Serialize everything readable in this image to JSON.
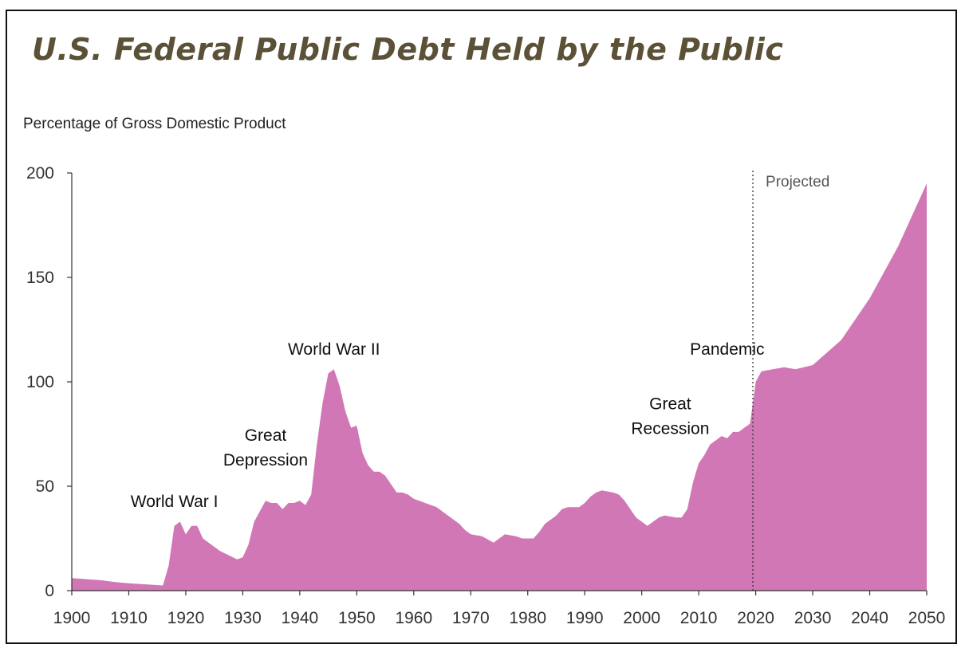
{
  "chart_data": {
    "type": "area",
    "title": "U.S. Federal Public Debt Held by the Public",
    "ylabel": "Percentage of Gross Domestic Product",
    "xlabel": "",
    "xlim": [
      1900,
      2050
    ],
    "ylim": [
      0,
      200
    ],
    "x_ticks": [
      1900,
      1910,
      1920,
      1930,
      1940,
      1950,
      1960,
      1970,
      1980,
      1990,
      2000,
      2010,
      2020,
      2030,
      2040,
      2050
    ],
    "y_ticks": [
      0,
      50,
      100,
      150,
      200
    ],
    "grid": false,
    "fill_color": "#d177b5",
    "projection_start": 2019.5,
    "projection_label": "Projected",
    "annotations": [
      {
        "label_lines": [
          "World War I"
        ],
        "x": 1918,
        "y": 40
      },
      {
        "label_lines": [
          "Great",
          "Depression"
        ],
        "x": 1934,
        "y": 60
      },
      {
        "label_lines": [
          "World War II"
        ],
        "x": 1946,
        "y": 113
      },
      {
        "label_lines": [
          "Great",
          "Recession"
        ],
        "x": 2005,
        "y": 75
      },
      {
        "label_lines": [
          "Pandemic"
        ],
        "x": 2015,
        "y": 113
      }
    ],
    "series": [
      {
        "x": [
          1900,
          1905,
          1908,
          1910,
          1913,
          1916,
          1917,
          1918,
          1919,
          1920,
          1921,
          1922,
          1923,
          1926,
          1929,
          1930,
          1931,
          1932,
          1934,
          1935,
          1936,
          1937,
          1938,
          1939,
          1940,
          1941,
          1942,
          1943,
          1944,
          1945,
          1946,
          1947,
          1948,
          1949,
          1950,
          1951,
          1952,
          1953,
          1954,
          1955,
          1956,
          1957,
          1958,
          1959,
          1960,
          1962,
          1964,
          1966,
          1968,
          1969,
          1970,
          1972,
          1974,
          1975,
          1976,
          1978,
          1979,
          1980,
          1981,
          1982,
          1983,
          1985,
          1986,
          1987,
          1988,
          1989,
          1990,
          1991,
          1992,
          1993,
          1995,
          1996,
          1997,
          1998,
          1999,
          2000,
          2001,
          2002,
          2003,
          2004,
          2006,
          2007,
          2008,
          2009,
          2010,
          2011,
          2012,
          2013,
          2014,
          2015,
          2016,
          2017,
          2018,
          2019,
          2020,
          2021,
          2023,
          2025,
          2027,
          2030,
          2035,
          2040,
          2045,
          2050
        ],
        "y": [
          6,
          5,
          4,
          3.5,
          3,
          2.5,
          12,
          31,
          33,
          27,
          31,
          31,
          25,
          19,
          15,
          16,
          22,
          33,
          43,
          42,
          42,
          39,
          42,
          42,
          43,
          41,
          46,
          70,
          90,
          104,
          106,
          98,
          86,
          78,
          79,
          66,
          60,
          57,
          57,
          55,
          51,
          47,
          47,
          46,
          44,
          42,
          40,
          36,
          32,
          29,
          27,
          26,
          23,
          25,
          27,
          26,
          25,
          25,
          25,
          28,
          32,
          36,
          39,
          40,
          40,
          40,
          42,
          45,
          47,
          48,
          47,
          46,
          43,
          39,
          35,
          33,
          31,
          33,
          35,
          36,
          35,
          35,
          39,
          52,
          61,
          65,
          70,
          72,
          74,
          73,
          76,
          76,
          78,
          80,
          100,
          105,
          106,
          107,
          106,
          108,
          120,
          140,
          165,
          195
        ]
      }
    ]
  }
}
